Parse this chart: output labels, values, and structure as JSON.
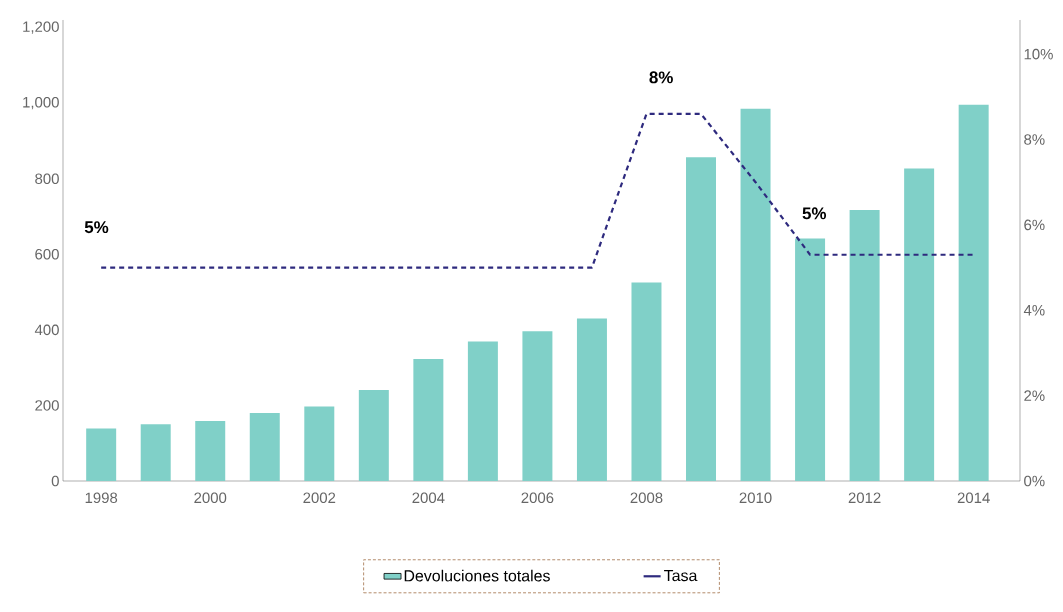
{
  "chart_data": {
    "type": "bar",
    "x": [
      1998,
      1999,
      2000,
      2001,
      2002,
      2003,
      2004,
      2005,
      2006,
      2007,
      2008,
      2009,
      2010,
      2011,
      2012,
      2013,
      2014
    ],
    "series": [
      {
        "name": "Devoluciones totales",
        "color": "#80d0c8",
        "values": [
          139,
          150,
          159,
          180,
          197,
          241,
          323,
          369,
          396,
          430,
          525,
          857,
          985,
          642,
          717,
          827,
          996
        ]
      },
      {
        "name": "Tasa",
        "type": "line",
        "axis": "y2",
        "color": "#2e2a7e",
        "line_style": "dashed",
        "values": [
          5.0,
          5.0,
          5.0,
          5.0,
          5.0,
          5.0,
          5.0,
          5.0,
          5.0,
          5.0,
          8.6,
          8.6,
          7.0,
          5.3,
          5.3,
          5.3,
          5.3
        ]
      }
    ],
    "xlim": [
      1997.3,
      2014.85
    ],
    "xticks": [
      1998,
      2000,
      2002,
      2004,
      2006,
      2008,
      2010,
      2012,
      2014
    ],
    "ylim": [
      0,
      1220
    ],
    "yticks": [
      0,
      200,
      400,
      600,
      800,
      {
        "value": 1000,
        "label": "1,000"
      },
      {
        "value": 1200,
        "label": "1,200"
      }
    ],
    "y2lim": [
      0,
      10.8
    ],
    "y2ticks": [
      {
        "value": 0,
        "label": "0%"
      },
      {
        "value": 2,
        "label": "2%"
      },
      {
        "value": 4,
        "label": "4%"
      },
      {
        "value": 6,
        "label": "6%"
      },
      {
        "value": 8,
        "label": "8%"
      },
      {
        "value": 10,
        "label": "10%"
      }
    ],
    "annotations": [
      "5%",
      "8%",
      "5%"
    ],
    "legend": "bottom",
    "grid": false
  }
}
